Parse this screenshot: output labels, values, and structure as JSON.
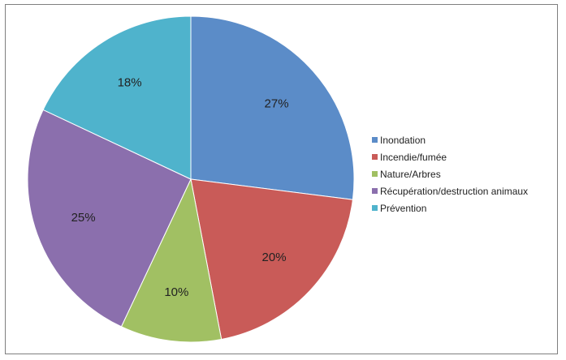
{
  "chart_data": {
    "type": "pie",
    "title": "",
    "categories": [
      "Inondation",
      "Incendie/fumée",
      "Nature/Arbres",
      "Récupération/destruction animaux",
      "Prévention"
    ],
    "values": [
      27,
      20,
      10,
      25,
      18
    ],
    "labels": [
      "27%",
      "20%",
      "10%",
      "25%",
      "18%"
    ],
    "colors": [
      "#5b8cc8",
      "#c95b58",
      "#a1c063",
      "#8b6fad",
      "#4fb3cc"
    ],
    "legend_position": "right",
    "start_angle_deg": 0,
    "direction": "clockwise"
  }
}
